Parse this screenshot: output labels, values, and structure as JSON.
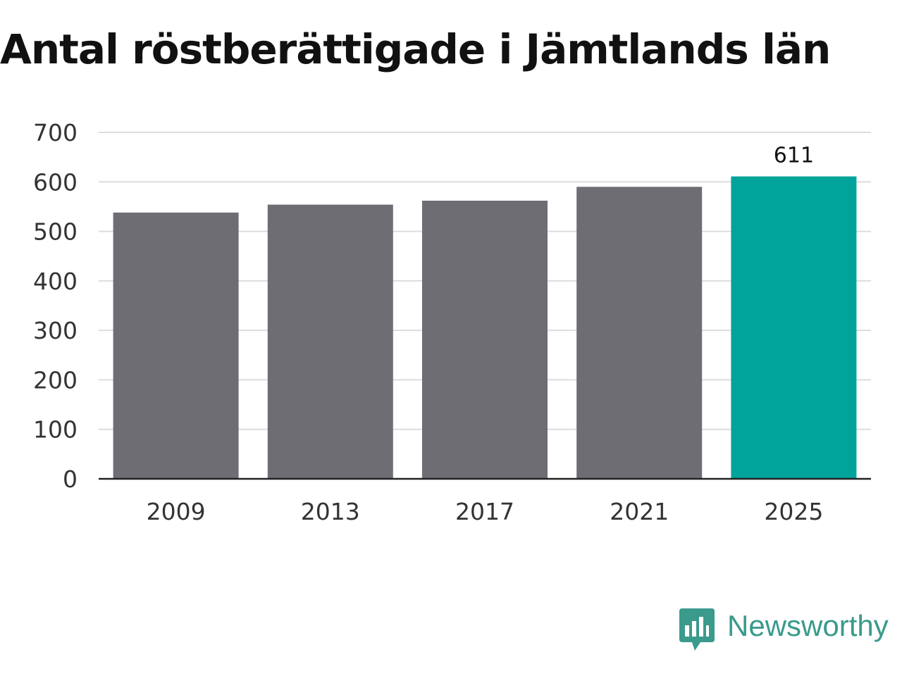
{
  "title": "Antal röstberättigade i Jämtlands län",
  "chart_data": {
    "type": "bar",
    "title": "Antal röstberättigade i Jämtlands län",
    "xlabel": "",
    "ylabel": "",
    "categories": [
      "2009",
      "2013",
      "2017",
      "2021",
      "2025"
    ],
    "values": [
      538,
      554,
      562,
      590,
      611
    ],
    "data_labels": [
      null,
      null,
      null,
      null,
      "611"
    ],
    "ylim": [
      0,
      700
    ],
    "yticks": [
      0,
      100,
      200,
      300,
      400,
      500,
      600,
      700
    ],
    "grid": true,
    "legend": "none",
    "colors": {
      "default_bar": "#6e6d74",
      "highlight_bar": "#00a49a",
      "grid": "#dddddd",
      "axis": "#222222"
    },
    "highlight_index": 4
  },
  "brand": {
    "name": "Newsworthy",
    "icon": "newsworthy-logo-icon",
    "color": "#3a9a8c"
  }
}
